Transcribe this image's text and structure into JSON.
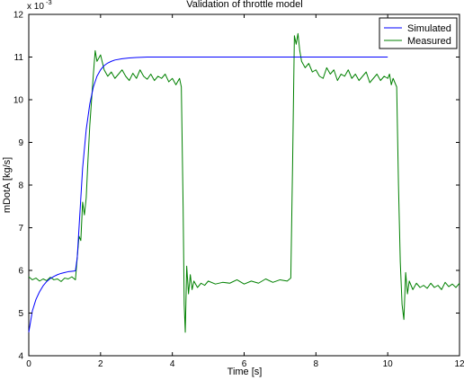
{
  "chart_data": {
    "type": "line",
    "title": "Validation of throttle model",
    "xlabel": "Time [s]",
    "ylabel": "mDotA [kg/s]",
    "y_multiplier": "x 10",
    "y_exponent": "-3",
    "xlim": [
      0,
      12
    ],
    "ylim": [
      4,
      12
    ],
    "xticks": [
      "0",
      "2",
      "4",
      "6",
      "8",
      "10",
      "12"
    ],
    "yticks": [
      "4",
      "5",
      "6",
      "7",
      "8",
      "9",
      "10",
      "11",
      "12"
    ],
    "grid": false,
    "legend_position": "top-right",
    "series": [
      {
        "name": "Simulated",
        "color": "#0000ff",
        "x": [
          0.0,
          0.1,
          0.2,
          0.3,
          0.4,
          0.5,
          0.6,
          0.7,
          0.8,
          0.9,
          1.0,
          1.1,
          1.2,
          1.3,
          1.35,
          1.4,
          1.5,
          1.6,
          1.7,
          1.8,
          1.9,
          2.0,
          2.1,
          2.2,
          2.3,
          2.4,
          2.6,
          2.8,
          3.0,
          3.3,
          3.6,
          4.0,
          5.0,
          6.0,
          7.0,
          8.0,
          9.0,
          10.0
        ],
        "values": [
          4.55,
          5.05,
          5.32,
          5.5,
          5.64,
          5.74,
          5.81,
          5.86,
          5.9,
          5.93,
          5.95,
          5.97,
          5.98,
          5.99,
          6.3,
          7.0,
          8.4,
          9.3,
          9.9,
          10.3,
          10.55,
          10.7,
          10.8,
          10.86,
          10.9,
          10.93,
          10.96,
          10.98,
          10.99,
          11.0,
          11.0,
          11.0,
          11.0,
          11.0,
          11.0,
          11.0,
          11.0,
          11.0
        ]
      },
      {
        "name": "Measured",
        "color": "#008000",
        "x": [
          0.0,
          0.1,
          0.2,
          0.3,
          0.4,
          0.5,
          0.6,
          0.7,
          0.8,
          0.9,
          1.0,
          1.1,
          1.2,
          1.3,
          1.35,
          1.4,
          1.45,
          1.5,
          1.55,
          1.6,
          1.65,
          1.7,
          1.75,
          1.8,
          1.85,
          1.9,
          2.0,
          2.1,
          2.2,
          2.3,
          2.4,
          2.5,
          2.6,
          2.7,
          2.8,
          2.9,
          3.0,
          3.1,
          3.2,
          3.3,
          3.4,
          3.5,
          3.6,
          3.7,
          3.8,
          3.9,
          4.0,
          4.1,
          4.2,
          4.25,
          4.3,
          4.33,
          4.36,
          4.4,
          4.45,
          4.5,
          4.55,
          4.6,
          4.7,
          4.8,
          4.9,
          5.0,
          5.2,
          5.4,
          5.6,
          5.8,
          6.0,
          6.2,
          6.4,
          6.6,
          6.8,
          7.0,
          7.2,
          7.3,
          7.35,
          7.4,
          7.45,
          7.5,
          7.55,
          7.6,
          7.7,
          7.8,
          7.9,
          8.0,
          8.1,
          8.2,
          8.3,
          8.4,
          8.5,
          8.6,
          8.7,
          8.8,
          8.9,
          9.0,
          9.1,
          9.2,
          9.3,
          9.4,
          9.5,
          9.6,
          9.7,
          9.8,
          9.9,
          10.0,
          10.05,
          10.1,
          10.15,
          10.2,
          10.25,
          10.3,
          10.35,
          10.4,
          10.45,
          10.5,
          10.55,
          10.6,
          10.7,
          10.8,
          10.9,
          11.0,
          11.1,
          11.2,
          11.3,
          11.4,
          11.5,
          11.6,
          11.7,
          11.8,
          11.9,
          12.0
        ],
        "values": [
          5.85,
          5.78,
          5.82,
          5.75,
          5.8,
          5.76,
          5.84,
          5.78,
          5.8,
          5.74,
          5.82,
          5.8,
          5.85,
          5.78,
          6.3,
          6.8,
          6.7,
          7.6,
          7.3,
          7.7,
          8.6,
          9.4,
          10.0,
          10.6,
          11.15,
          10.9,
          11.05,
          10.7,
          10.55,
          10.65,
          10.5,
          10.6,
          10.7,
          10.55,
          10.45,
          10.62,
          10.5,
          10.7,
          10.55,
          10.48,
          10.6,
          10.45,
          10.55,
          10.5,
          10.6,
          10.42,
          10.5,
          10.35,
          10.5,
          10.3,
          7.5,
          5.2,
          4.55,
          6.1,
          5.45,
          5.9,
          5.55,
          5.75,
          5.6,
          5.7,
          5.65,
          5.75,
          5.68,
          5.72,
          5.7,
          5.78,
          5.68,
          5.75,
          5.7,
          5.8,
          5.72,
          5.78,
          5.75,
          5.82,
          8.5,
          11.5,
          11.3,
          11.55,
          11.15,
          10.9,
          10.75,
          10.85,
          10.65,
          10.7,
          10.55,
          10.5,
          10.75,
          10.6,
          10.7,
          10.45,
          10.6,
          10.55,
          10.7,
          10.5,
          10.6,
          10.45,
          10.55,
          10.65,
          10.4,
          10.5,
          10.6,
          10.45,
          10.55,
          10.5,
          10.6,
          10.35,
          10.5,
          10.4,
          10.3,
          8.0,
          6.2,
          5.2,
          4.85,
          5.95,
          5.45,
          5.75,
          5.55,
          5.7,
          5.6,
          5.65,
          5.58,
          5.7,
          5.6,
          5.65,
          5.55,
          5.72,
          5.62,
          5.68,
          5.6,
          5.7
        ]
      }
    ]
  }
}
